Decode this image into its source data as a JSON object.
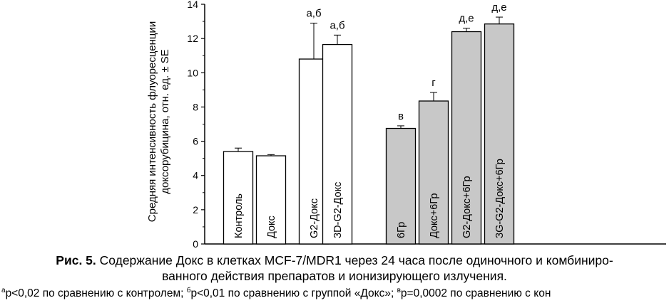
{
  "chart_data": {
    "type": "bar",
    "ylabel_line1": "Средняя интенсивность флуоресценции",
    "ylabel_line2": "доксорубицина, отн. ед. ± SE",
    "ylim": [
      0,
      14
    ],
    "yticks": [
      0,
      2,
      4,
      6,
      8,
      10,
      12,
      14
    ],
    "categories": [
      "Контроль",
      "Докс",
      "G2-Докс",
      "3D-G2-Докс",
      "6Гр",
      "Докс+6Гр",
      "G2-Докс+6Гр",
      "3G-G2-Докс+6Гр"
    ],
    "values": [
      5.4,
      5.15,
      10.8,
      11.65,
      6.75,
      8.35,
      12.4,
      12.85
    ],
    "errors": [
      0.2,
      0.07,
      2.1,
      0.55,
      0.15,
      0.5,
      0.2,
      0.4
    ],
    "annotations": [
      "",
      "",
      "а,б",
      "а,б",
      "в",
      "г",
      "д,е",
      "д,е"
    ],
    "colors": [
      "#ffffff",
      "#ffffff",
      "#ffffff",
      "#ffffff",
      "#c8c8c8",
      "#c8c8c8",
      "#c8c8c8",
      "#c8c8c8"
    ],
    "grid": false
  },
  "caption": {
    "label": "Рис. 5.",
    "line1": " Содержание Докс в клетках MCF-7/MDR1 через 24 часа после одиночного и комбиниро-",
    "line2": "ванного действия препаратов и ионизирующего излучения."
  },
  "footnote": {
    "sup_a": "а",
    "part_a": "p<0,02 по сравнению с контролем; ",
    "sup_b": "б",
    "part_b": "p<0,01 по сравнению с группой «Докс»; ",
    "sup_c": "в",
    "part_c": "p=0,0002 по сравнению с кон"
  }
}
